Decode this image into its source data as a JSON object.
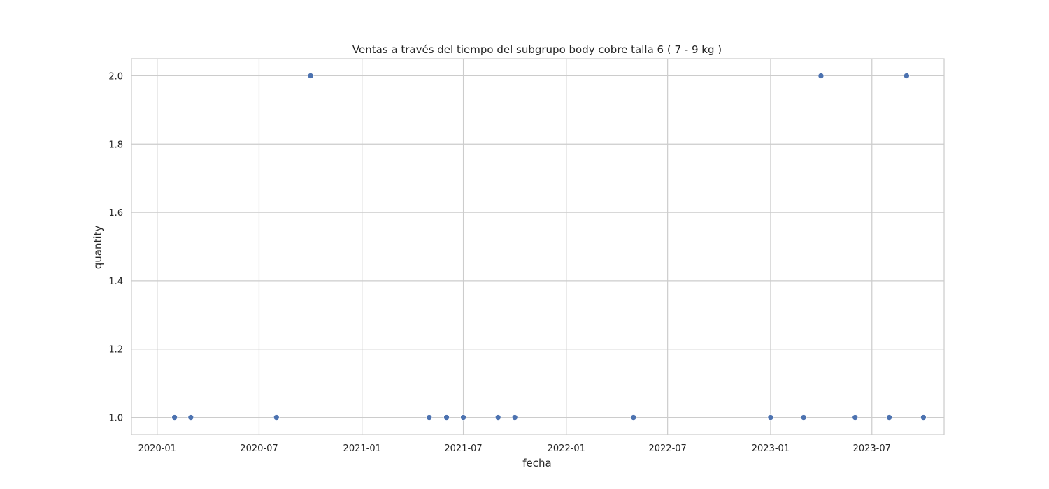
{
  "chart_data": {
    "type": "scatter",
    "title": "Ventas a través del tiempo del subgrupo body cobre talla 6 ( 7 - 9 kg )",
    "xlabel": "fecha",
    "ylabel": "quantity",
    "x_type": "date",
    "xlim": [
      "2019-11-16",
      "2023-11-07"
    ],
    "ylim": [
      0.95,
      2.05
    ],
    "x_ticks": [
      "2020-01",
      "2020-07",
      "2021-01",
      "2021-07",
      "2022-01",
      "2022-07",
      "2023-01",
      "2023-07"
    ],
    "y_ticks": [
      "1.0",
      "1.2",
      "1.4",
      "1.6",
      "1.8",
      "2.0"
    ],
    "grid": true,
    "marker_color": "#4c72b0",
    "grid_color": "#cccccc",
    "points": [
      {
        "x": "2020-02-01",
        "y": 1
      },
      {
        "x": "2020-03-01",
        "y": 1
      },
      {
        "x": "2020-08-01",
        "y": 1
      },
      {
        "x": "2020-10-01",
        "y": 2
      },
      {
        "x": "2021-05-01",
        "y": 1
      },
      {
        "x": "2021-06-01",
        "y": 1
      },
      {
        "x": "2021-07-01",
        "y": 1
      },
      {
        "x": "2021-09-01",
        "y": 1
      },
      {
        "x": "2021-10-01",
        "y": 1
      },
      {
        "x": "2022-05-01",
        "y": 1
      },
      {
        "x": "2023-01-01",
        "y": 1
      },
      {
        "x": "2023-03-01",
        "y": 1
      },
      {
        "x": "2023-04-01",
        "y": 2
      },
      {
        "x": "2023-06-01",
        "y": 1
      },
      {
        "x": "2023-08-01",
        "y": 1
      },
      {
        "x": "2023-09-01",
        "y": 2
      },
      {
        "x": "2023-10-01",
        "y": 1
      }
    ]
  }
}
